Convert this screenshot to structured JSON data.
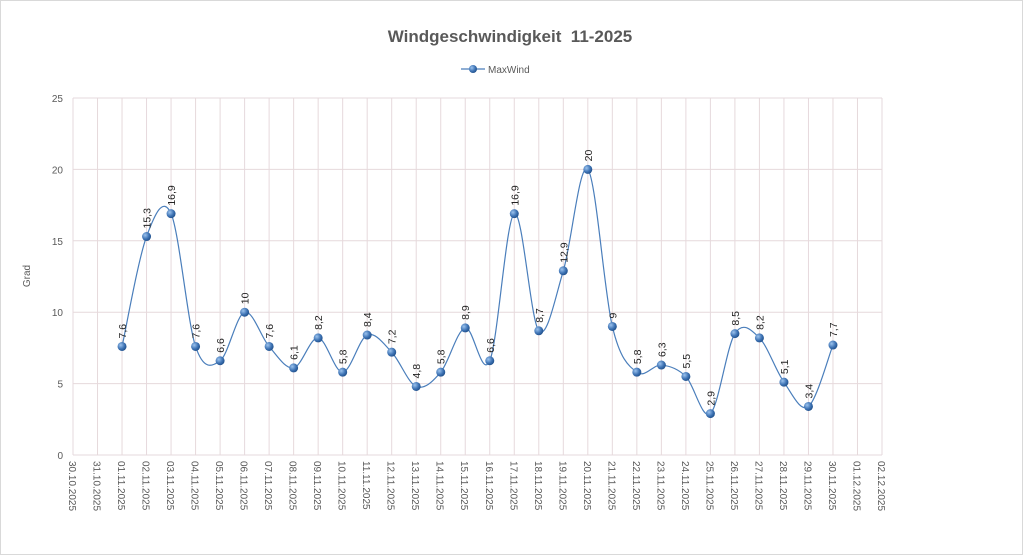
{
  "chart_data": {
    "type": "line",
    "title": "Windgeschwindigkeit  11-2025",
    "xlabel": "",
    "ylabel": "Grad",
    "ylim": [
      0,
      25
    ],
    "yticks": [
      0,
      5,
      10,
      15,
      20,
      25
    ],
    "grid": true,
    "legend": "top-center",
    "categories": [
      "30.10.2025",
      "31.10.2025",
      "01.11.2025",
      "02.11.2025",
      "03.11.2025",
      "04.11.2025",
      "05.11.2025",
      "06.11.2025",
      "07.11.2025",
      "08.11.2025",
      "09.11.2025",
      "10.11.2025",
      "11.11.2025",
      "12.11.2025",
      "13.11.2025",
      "14.11.2025",
      "15.11.2025",
      "16.11.2025",
      "17.11.2025",
      "18.11.2025",
      "19.11.2025",
      "20.11.2025",
      "21.11.2025",
      "22.11.2025",
      "23.11.2025",
      "24.11.2025",
      "25.11.2025",
      "26.11.2025",
      "27.11.2025",
      "28.11.2025",
      "29.11.2025",
      "30.11.2025",
      "01.12.2025",
      "02.12.2025"
    ],
    "series": [
      {
        "name": "MaxWind",
        "color": "#4a7ebb",
        "values": [
          null,
          null,
          7.6,
          15.3,
          16.9,
          7.6,
          6.6,
          10,
          7.6,
          6.1,
          8.2,
          5.8,
          8.4,
          7.2,
          4.8,
          5.8,
          8.9,
          6.6,
          16.9,
          8.7,
          12.9,
          20,
          9,
          5.8,
          6.3,
          5.5,
          2.9,
          8.5,
          8.2,
          5.1,
          3.4,
          7.7,
          null,
          null
        ],
        "labels": [
          null,
          null,
          "7,6",
          "15,3",
          "16,9",
          "7,6",
          "6,6",
          "10",
          "7,6",
          "6,1",
          "8,2",
          "5,8",
          "8,4",
          "7,2",
          "4,8",
          "5,8",
          "8,9",
          "6,6",
          "16,9",
          "8,7",
          "12,9",
          "20",
          "9",
          "5,8",
          "6,3",
          "5,5",
          "2,9",
          "8,5",
          "8,2",
          "5,1",
          "3,4",
          "7,7",
          null,
          null
        ]
      }
    ]
  }
}
